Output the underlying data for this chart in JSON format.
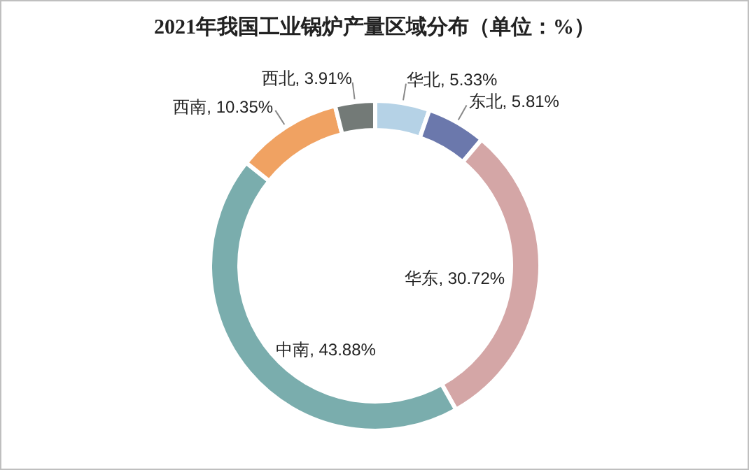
{
  "chart_data": {
    "type": "donut",
    "title": "2021年我国工业锅炉产量区域分布（单位：%）",
    "categories": [
      "华北",
      "东北",
      "华东",
      "中南",
      "西南",
      "西北"
    ],
    "values": [
      5.33,
      5.81,
      30.72,
      43.88,
      10.35,
      3.91
    ],
    "value_labels": [
      ", 5.33%",
      ", 5.81%",
      ", 30.72%",
      ", 43.88%",
      ", 10.35%",
      ", 3.91%"
    ],
    "colors": [
      "#b5d2e6",
      "#6b78ac",
      "#d4a6a6",
      "#7aadad",
      "#f0a262",
      "#737a77"
    ]
  }
}
